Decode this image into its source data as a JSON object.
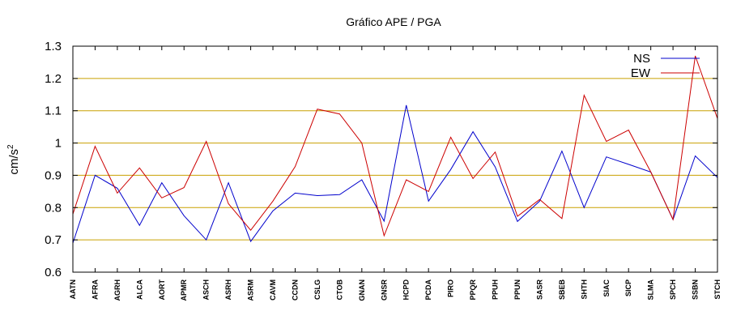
{
  "chart_data": {
    "type": "line",
    "title": "Gráfico  APE / PGA",
    "ylabel": "cm/s",
    "ylabel_sup": "2",
    "ylim": [
      0.6,
      1.3
    ],
    "yticks": [
      0.6,
      0.7,
      0.8,
      0.9,
      1,
      1.1,
      1.2,
      1.3
    ],
    "ytick_labels": [
      "0.6",
      "0.7",
      "0.8",
      "0.9",
      "1",
      "1.1",
      "1.2",
      "1.3"
    ],
    "grid": "horizontal",
    "legend_position": "top-right",
    "categories": [
      "AATN",
      "AFRA",
      "AGRH",
      "ALCA",
      "AORT",
      "APMR",
      "ASCH",
      "ASRH",
      "ASRM",
      "CAVM",
      "CCDN",
      "CSLG",
      "CTOB",
      "GNAN",
      "GNSR",
      "HCPD",
      "PCDA",
      "PIRO",
      "PPQR",
      "PPUH",
      "PPUN",
      "SASR",
      "SBEB",
      "SHTH",
      "SIAC",
      "SICP",
      "SLMA",
      "SPCH",
      "SSBN",
      "STCH"
    ],
    "series": [
      {
        "name": "NS",
        "color": "#0000cc",
        "values": [
          0.69,
          0.9,
          0.86,
          0.745,
          0.877,
          0.775,
          0.7,
          0.877,
          0.695,
          0.79,
          0.845,
          0.837,
          0.84,
          0.886,
          0.758,
          1.117,
          0.82,
          0.918,
          1.035,
          0.926,
          0.757,
          0.82,
          0.975,
          0.8,
          0.957,
          0.934,
          0.91,
          0.763,
          0.96,
          0.893
        ]
      },
      {
        "name": "EW",
        "color": "#cc0000",
        "values": [
          0.78,
          0.99,
          0.845,
          0.923,
          0.83,
          0.862,
          1.005,
          0.812,
          0.73,
          0.82,
          0.927,
          1.105,
          1.09,
          1.0,
          0.713,
          0.886,
          0.85,
          1.018,
          0.89,
          0.972,
          0.773,
          0.825,
          0.766,
          1.148,
          1.005,
          1.04,
          0.91,
          0.763,
          1.27,
          1.076
        ]
      }
    ]
  }
}
